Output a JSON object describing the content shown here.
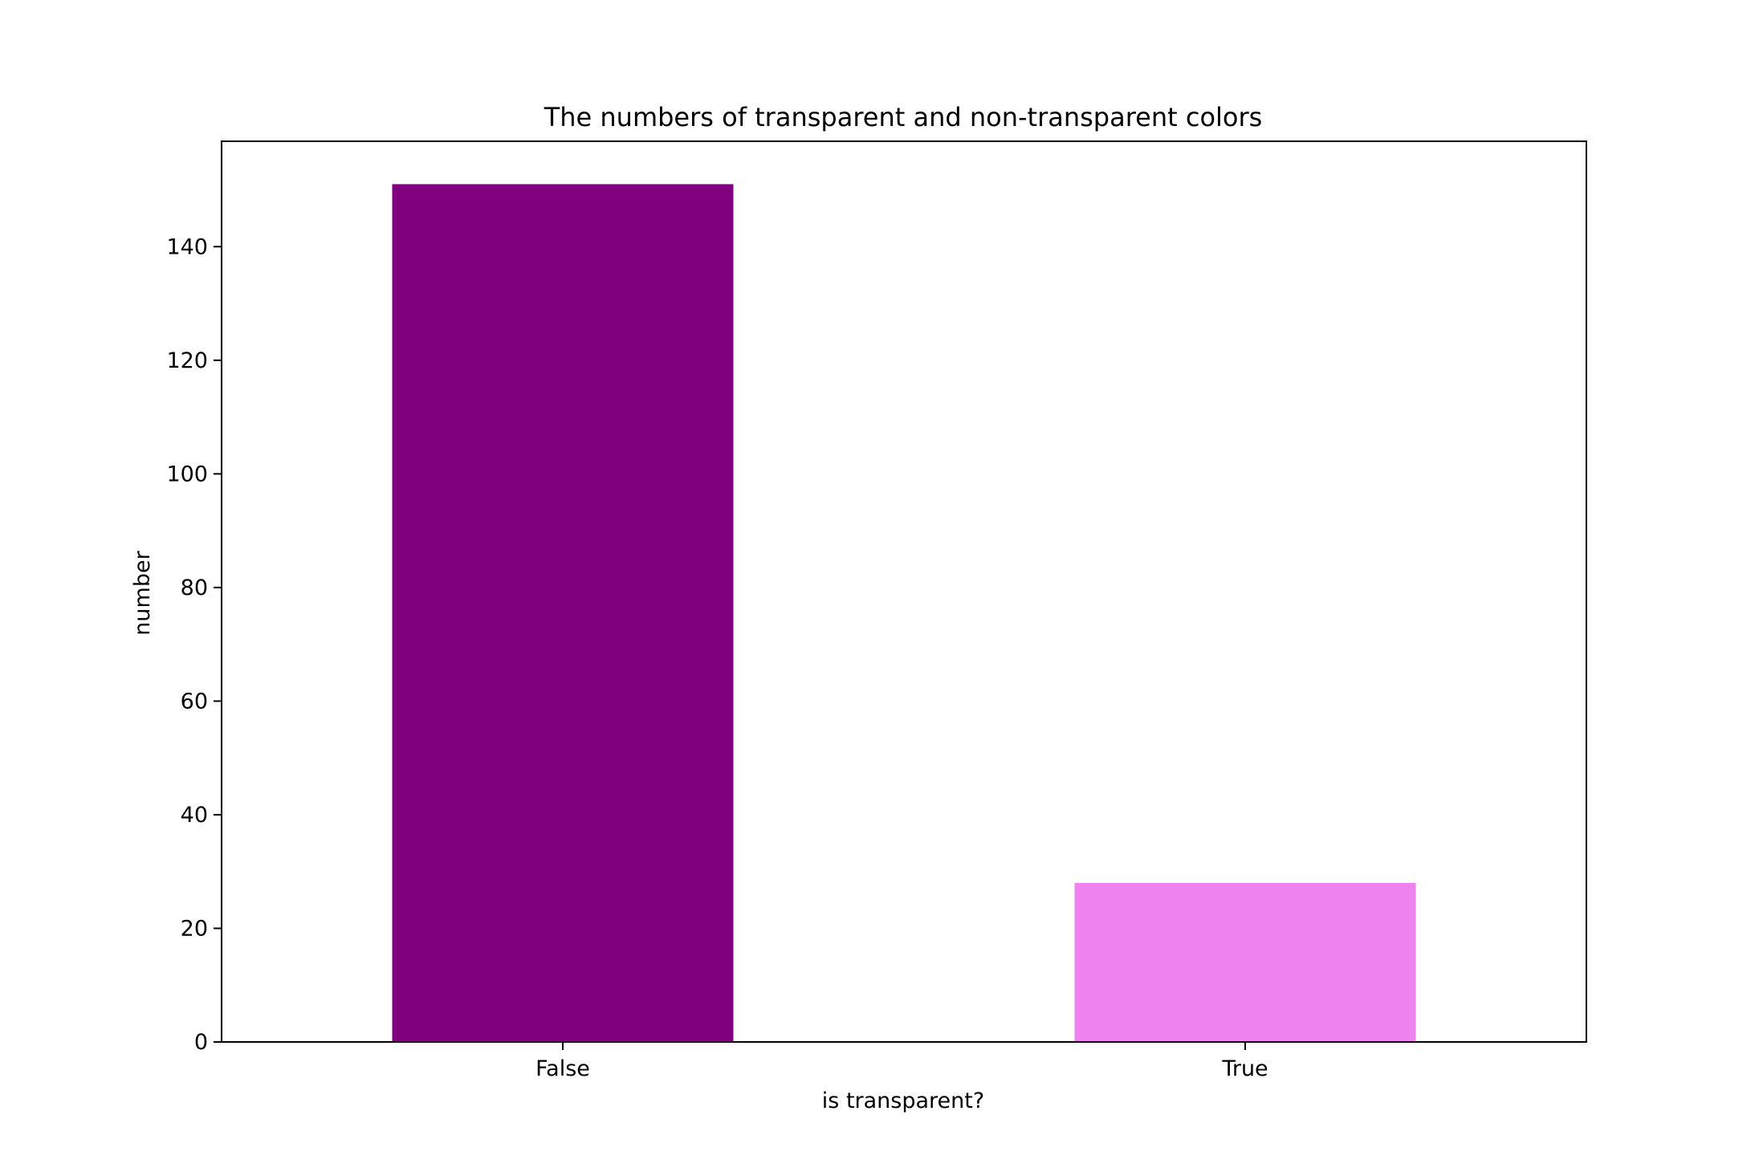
{
  "chart_data": {
    "type": "bar",
    "title": "The numbers of transparent and non-transparent colors",
    "xlabel": "is transparent?",
    "ylabel": "number",
    "categories": [
      "False",
      "True"
    ],
    "values": [
      151,
      28
    ],
    "colors": [
      "#800080",
      "#ee82ee"
    ],
    "ylim": [
      0,
      158.55
    ],
    "yticks": [
      0,
      20,
      40,
      60,
      80,
      100,
      120,
      140
    ],
    "grid": false,
    "legend": "none"
  }
}
